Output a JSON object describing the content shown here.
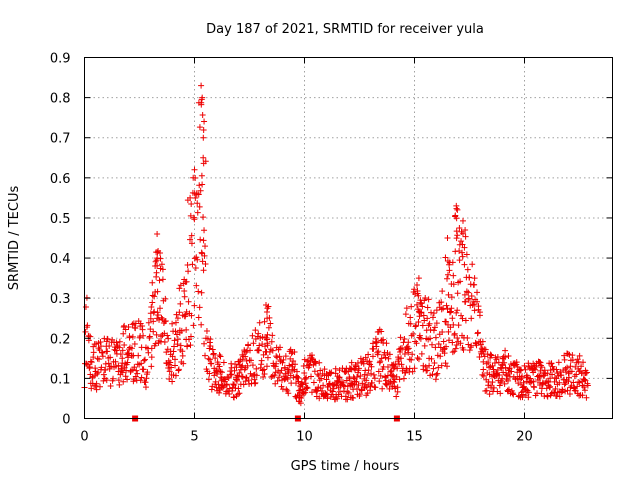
{
  "chart_data": {
    "type": "scatter",
    "title": "Day 187 of 2021, SRMTID for receiver yula",
    "xlabel": "GPS time / hours",
    "ylabel": "SRMTID / TECUs",
    "xlim": [
      0,
      24
    ],
    "ylim": [
      0,
      0.9
    ],
    "xticks": [
      0,
      5,
      10,
      15,
      20
    ],
    "yticks": [
      0,
      0.1,
      0.2,
      0.3,
      0.4,
      0.5,
      0.6,
      0.7,
      0.8,
      0.9
    ],
    "ytick_labels": [
      "0",
      "0.1",
      "0.2",
      "0.3",
      "0.4",
      "0.5",
      "0.6",
      "0.7",
      "0.8",
      "0.9"
    ],
    "marker": "plus",
    "color": "#ee0000",
    "grid": true,
    "legend": "none",
    "zero_markers_x": [
      2.3,
      9.7,
      14.2
    ],
    "envelope": {
      "hours": [
        0.0,
        0.1,
        0.2,
        0.3,
        2.4,
        2.8,
        3.1,
        3.3,
        3.5,
        3.8,
        4.1,
        4.5,
        4.8,
        5.0,
        5.2,
        5.4,
        5.6,
        5.8,
        6.5,
        7.0,
        7.5,
        8.0,
        8.3,
        8.6,
        9.0,
        9.5,
        9.8,
        10.0,
        10.3,
        10.8,
        11.5,
        12.0,
        12.5,
        13.0,
        13.4,
        13.8,
        14.2,
        14.5,
        14.8,
        15.2,
        15.6,
        16.0,
        16.4,
        16.8,
        17.0,
        17.3,
        17.6,
        17.9,
        18.2,
        18.6,
        19.0,
        19.5,
        20.0,
        20.5,
        21.0,
        21.5,
        22.0,
        22.5,
        22.9
      ],
      "srmtid": [
        0.14,
        0.25,
        0.2,
        0.12,
        0.17,
        0.14,
        0.22,
        0.32,
        0.28,
        0.15,
        0.18,
        0.24,
        0.3,
        0.42,
        0.4,
        0.36,
        0.16,
        0.12,
        0.09,
        0.1,
        0.13,
        0.17,
        0.2,
        0.14,
        0.1,
        0.12,
        0.05,
        0.1,
        0.12,
        0.08,
        0.08,
        0.09,
        0.1,
        0.11,
        0.14,
        0.12,
        0.09,
        0.16,
        0.2,
        0.24,
        0.2,
        0.18,
        0.23,
        0.3,
        0.33,
        0.3,
        0.27,
        0.2,
        0.12,
        0.1,
        0.11,
        0.1,
        0.09,
        0.1,
        0.09,
        0.1,
        0.11,
        0.1,
        0.09
      ]
    },
    "spikes": [
      {
        "x": 3.3,
        "y": 0.46
      },
      {
        "x": 4.8,
        "y": 0.55
      },
      {
        "x": 5.0,
        "y": 0.62
      },
      {
        "x": 5.3,
        "y": 0.83
      },
      {
        "x": 5.35,
        "y": 0.8
      },
      {
        "x": 5.4,
        "y": 0.7
      },
      {
        "x": 8.3,
        "y": 0.25
      },
      {
        "x": 15.2,
        "y": 0.35
      },
      {
        "x": 16.5,
        "y": 0.45
      },
      {
        "x": 16.9,
        "y": 0.53
      },
      {
        "x": 16.95,
        "y": 0.52
      },
      {
        "x": 17.3,
        "y": 0.47
      }
    ]
  }
}
